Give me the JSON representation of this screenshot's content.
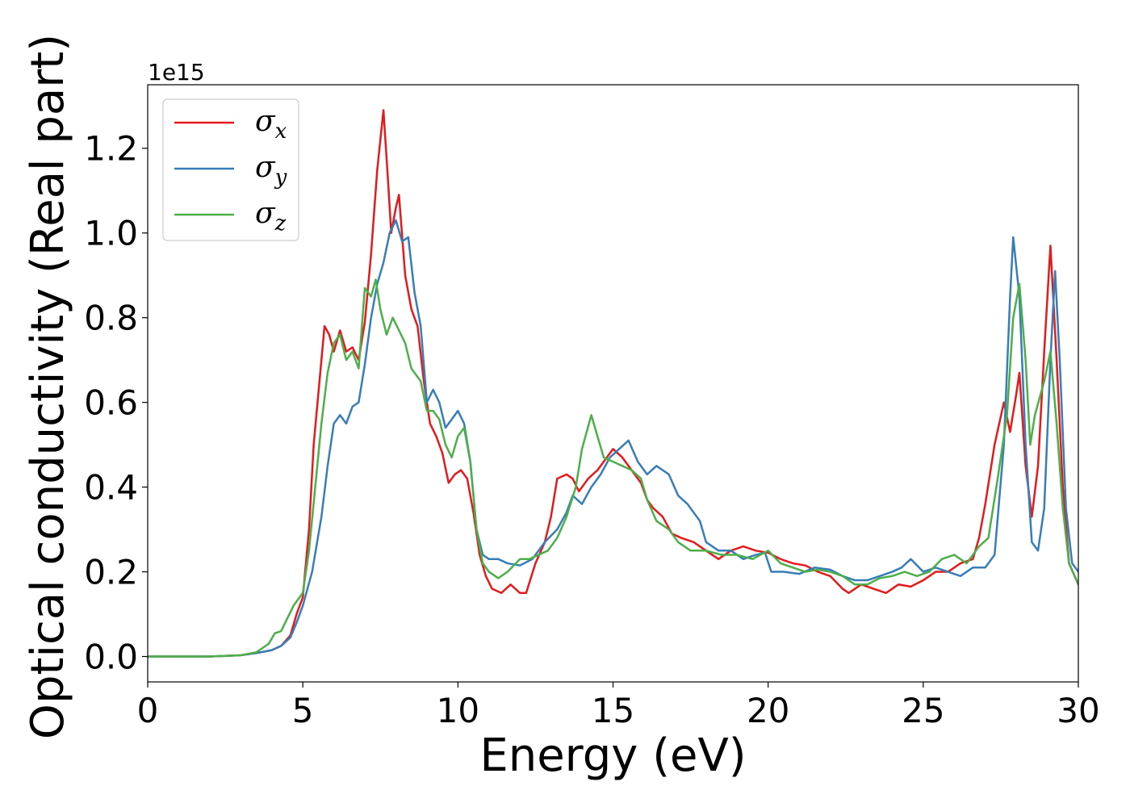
{
  "chart_data": {
    "type": "line",
    "xlabel": "Energy (eV)",
    "ylabel": "Optical conductivity (Real part)",
    "y_offset_label": "1e15",
    "xlim": [
      0,
      30
    ],
    "ylim": [
      -0.06,
      1.35
    ],
    "x_ticks": [
      0,
      5,
      10,
      15,
      20,
      25,
      30
    ],
    "x_tick_labels": [
      "0",
      "5",
      "10",
      "15",
      "20",
      "25",
      "30"
    ],
    "y_ticks": [
      0.0,
      0.2,
      0.4,
      0.6,
      0.8,
      1.0,
      1.2
    ],
    "y_tick_labels": [
      "0.0",
      "0.2",
      "0.4",
      "0.6",
      "0.8",
      "1.0",
      "1.2"
    ],
    "grid": false,
    "legend_position": "top-left",
    "series": [
      {
        "name": "σx",
        "symbol": "σ",
        "subscript": "x",
        "color": "#e41a1c",
        "points": [
          [
            0,
            0.0
          ],
          [
            1,
            0.0
          ],
          [
            2,
            0.0
          ],
          [
            3,
            0.003
          ],
          [
            3.5,
            0.008
          ],
          [
            4,
            0.015
          ],
          [
            4.3,
            0.025
          ],
          [
            4.6,
            0.05
          ],
          [
            4.8,
            0.1
          ],
          [
            5,
            0.14
          ],
          [
            5.2,
            0.3
          ],
          [
            5.35,
            0.5
          ],
          [
            5.5,
            0.62
          ],
          [
            5.7,
            0.78
          ],
          [
            5.85,
            0.76
          ],
          [
            6,
            0.72
          ],
          [
            6.2,
            0.77
          ],
          [
            6.4,
            0.72
          ],
          [
            6.6,
            0.73
          ],
          [
            6.8,
            0.7
          ],
          [
            7,
            0.79
          ],
          [
            7.2,
            0.95
          ],
          [
            7.4,
            1.15
          ],
          [
            7.6,
            1.29
          ],
          [
            7.75,
            1.12
          ],
          [
            7.85,
            1.0
          ],
          [
            8,
            1.06
          ],
          [
            8.1,
            1.09
          ],
          [
            8.3,
            0.9
          ],
          [
            8.5,
            0.82
          ],
          [
            8.7,
            0.78
          ],
          [
            8.9,
            0.65
          ],
          [
            9.1,
            0.55
          ],
          [
            9.3,
            0.52
          ],
          [
            9.5,
            0.48
          ],
          [
            9.7,
            0.41
          ],
          [
            9.9,
            0.43
          ],
          [
            10.1,
            0.44
          ],
          [
            10.3,
            0.42
          ],
          [
            10.5,
            0.34
          ],
          [
            10.7,
            0.24
          ],
          [
            10.9,
            0.19
          ],
          [
            11.1,
            0.16
          ],
          [
            11.4,
            0.15
          ],
          [
            11.7,
            0.17
          ],
          [
            12,
            0.15
          ],
          [
            12.2,
            0.15
          ],
          [
            12.5,
            0.22
          ],
          [
            12.8,
            0.27
          ],
          [
            13,
            0.33
          ],
          [
            13.2,
            0.42
          ],
          [
            13.5,
            0.43
          ],
          [
            13.7,
            0.42
          ],
          [
            13.9,
            0.39
          ],
          [
            14.2,
            0.42
          ],
          [
            14.5,
            0.44
          ],
          [
            14.8,
            0.47
          ],
          [
            15,
            0.49
          ],
          [
            15.3,
            0.47
          ],
          [
            15.6,
            0.44
          ],
          [
            15.9,
            0.41
          ],
          [
            16.1,
            0.37
          ],
          [
            16.3,
            0.35
          ],
          [
            16.6,
            0.33
          ],
          [
            16.9,
            0.29
          ],
          [
            17.2,
            0.28
          ],
          [
            17.6,
            0.27
          ],
          [
            18,
            0.25
          ],
          [
            18.4,
            0.23
          ],
          [
            18.8,
            0.25
          ],
          [
            19.2,
            0.26
          ],
          [
            19.6,
            0.25
          ],
          [
            20,
            0.245
          ],
          [
            20.4,
            0.23
          ],
          [
            20.8,
            0.22
          ],
          [
            21.2,
            0.215
          ],
          [
            21.6,
            0.2
          ],
          [
            22,
            0.19
          ],
          [
            22.4,
            0.16
          ],
          [
            22.6,
            0.15
          ],
          [
            23,
            0.17
          ],
          [
            23.4,
            0.16
          ],
          [
            23.8,
            0.15
          ],
          [
            24.2,
            0.17
          ],
          [
            24.6,
            0.165
          ],
          [
            25,
            0.18
          ],
          [
            25.4,
            0.2
          ],
          [
            25.8,
            0.2
          ],
          [
            26.2,
            0.22
          ],
          [
            26.6,
            0.23
          ],
          [
            26.8,
            0.28
          ],
          [
            27,
            0.36
          ],
          [
            27.3,
            0.5
          ],
          [
            27.6,
            0.6
          ],
          [
            27.8,
            0.53
          ],
          [
            28,
            0.62
          ],
          [
            28.1,
            0.67
          ],
          [
            28.3,
            0.45
          ],
          [
            28.5,
            0.33
          ],
          [
            28.7,
            0.45
          ],
          [
            28.9,
            0.72
          ],
          [
            29.1,
            0.97
          ],
          [
            29.3,
            0.7
          ],
          [
            29.5,
            0.4
          ],
          [
            29.7,
            0.22
          ],
          [
            30,
            0.17
          ]
        ]
      },
      {
        "name": "σy",
        "symbol": "σ",
        "subscript": "y",
        "color": "#377eb8",
        "points": [
          [
            0,
            0.0
          ],
          [
            1,
            0.0
          ],
          [
            2,
            0.0
          ],
          [
            3,
            0.003
          ],
          [
            3.5,
            0.008
          ],
          [
            4,
            0.015
          ],
          [
            4.3,
            0.025
          ],
          [
            4.6,
            0.045
          ],
          [
            4.8,
            0.08
          ],
          [
            5,
            0.12
          ],
          [
            5.3,
            0.2
          ],
          [
            5.6,
            0.33
          ],
          [
            5.8,
            0.45
          ],
          [
            6,
            0.55
          ],
          [
            6.2,
            0.57
          ],
          [
            6.4,
            0.55
          ],
          [
            6.6,
            0.59
          ],
          [
            6.8,
            0.6
          ],
          [
            7,
            0.69
          ],
          [
            7.2,
            0.8
          ],
          [
            7.4,
            0.88
          ],
          [
            7.6,
            0.93
          ],
          [
            7.8,
            1.0
          ],
          [
            8,
            1.03
          ],
          [
            8.2,
            0.98
          ],
          [
            8.4,
            0.99
          ],
          [
            8.6,
            0.86
          ],
          [
            8.8,
            0.78
          ],
          [
            9,
            0.6
          ],
          [
            9.2,
            0.63
          ],
          [
            9.4,
            0.6
          ],
          [
            9.6,
            0.54
          ],
          [
            9.8,
            0.56
          ],
          [
            10,
            0.58
          ],
          [
            10.2,
            0.55
          ],
          [
            10.4,
            0.46
          ],
          [
            10.6,
            0.3
          ],
          [
            10.8,
            0.24
          ],
          [
            11,
            0.23
          ],
          [
            11.3,
            0.23
          ],
          [
            11.6,
            0.22
          ],
          [
            12,
            0.215
          ],
          [
            12.4,
            0.23
          ],
          [
            12.8,
            0.27
          ],
          [
            13.2,
            0.3
          ],
          [
            13.5,
            0.34
          ],
          [
            13.7,
            0.38
          ],
          [
            14,
            0.36
          ],
          [
            14.3,
            0.4
          ],
          [
            14.6,
            0.43
          ],
          [
            14.9,
            0.47
          ],
          [
            15.2,
            0.49
          ],
          [
            15.5,
            0.51
          ],
          [
            15.8,
            0.46
          ],
          [
            16.1,
            0.43
          ],
          [
            16.4,
            0.45
          ],
          [
            16.8,
            0.43
          ],
          [
            17.1,
            0.38
          ],
          [
            17.4,
            0.36
          ],
          [
            17.8,
            0.32
          ],
          [
            18,
            0.27
          ],
          [
            18.4,
            0.25
          ],
          [
            18.8,
            0.25
          ],
          [
            19.2,
            0.23
          ],
          [
            19.6,
            0.24
          ],
          [
            19.9,
            0.245
          ],
          [
            20.1,
            0.2
          ],
          [
            20.5,
            0.2
          ],
          [
            21,
            0.195
          ],
          [
            21.5,
            0.21
          ],
          [
            22,
            0.205
          ],
          [
            22.4,
            0.19
          ],
          [
            22.8,
            0.18
          ],
          [
            23.2,
            0.18
          ],
          [
            23.6,
            0.19
          ],
          [
            24,
            0.2
          ],
          [
            24.3,
            0.21
          ],
          [
            24.6,
            0.23
          ],
          [
            25,
            0.2
          ],
          [
            25.4,
            0.21
          ],
          [
            25.8,
            0.2
          ],
          [
            26.2,
            0.19
          ],
          [
            26.6,
            0.21
          ],
          [
            27,
            0.21
          ],
          [
            27.3,
            0.24
          ],
          [
            27.6,
            0.5
          ],
          [
            27.8,
            0.85
          ],
          [
            27.9,
            0.99
          ],
          [
            28.1,
            0.85
          ],
          [
            28.3,
            0.5
          ],
          [
            28.5,
            0.27
          ],
          [
            28.7,
            0.25
          ],
          [
            28.9,
            0.35
          ],
          [
            29.1,
            0.7
          ],
          [
            29.25,
            0.91
          ],
          [
            29.4,
            0.7
          ],
          [
            29.6,
            0.35
          ],
          [
            29.8,
            0.22
          ],
          [
            30,
            0.2
          ]
        ]
      },
      {
        "name": "σz",
        "symbol": "σ",
        "subscript": "z",
        "color": "#4daf4a",
        "points": [
          [
            0,
            0.0
          ],
          [
            1,
            0.0
          ],
          [
            2,
            0.0
          ],
          [
            3,
            0.003
          ],
          [
            3.5,
            0.01
          ],
          [
            3.9,
            0.03
          ],
          [
            4.1,
            0.055
          ],
          [
            4.3,
            0.06
          ],
          [
            4.5,
            0.09
          ],
          [
            4.7,
            0.12
          ],
          [
            5,
            0.15
          ],
          [
            5.2,
            0.25
          ],
          [
            5.4,
            0.4
          ],
          [
            5.6,
            0.55
          ],
          [
            5.8,
            0.67
          ],
          [
            6,
            0.74
          ],
          [
            6.2,
            0.76
          ],
          [
            6.4,
            0.7
          ],
          [
            6.6,
            0.72
          ],
          [
            6.8,
            0.68
          ],
          [
            7,
            0.87
          ],
          [
            7.2,
            0.85
          ],
          [
            7.35,
            0.89
          ],
          [
            7.5,
            0.82
          ],
          [
            7.7,
            0.76
          ],
          [
            7.9,
            0.8
          ],
          [
            8.1,
            0.77
          ],
          [
            8.3,
            0.74
          ],
          [
            8.5,
            0.68
          ],
          [
            8.8,
            0.65
          ],
          [
            9,
            0.58
          ],
          [
            9.2,
            0.58
          ],
          [
            9.4,
            0.56
          ],
          [
            9.6,
            0.5
          ],
          [
            9.8,
            0.47
          ],
          [
            10,
            0.52
          ],
          [
            10.2,
            0.54
          ],
          [
            10.4,
            0.46
          ],
          [
            10.6,
            0.3
          ],
          [
            10.8,
            0.22
          ],
          [
            11,
            0.2
          ],
          [
            11.3,
            0.185
          ],
          [
            11.6,
            0.2
          ],
          [
            12,
            0.23
          ],
          [
            12.3,
            0.23
          ],
          [
            12.6,
            0.24
          ],
          [
            12.9,
            0.25
          ],
          [
            13.2,
            0.28
          ],
          [
            13.5,
            0.33
          ],
          [
            13.8,
            0.4
          ],
          [
            14,
            0.49
          ],
          [
            14.3,
            0.57
          ],
          [
            14.5,
            0.52
          ],
          [
            14.7,
            0.47
          ],
          [
            15,
            0.46
          ],
          [
            15.3,
            0.45
          ],
          [
            15.6,
            0.44
          ],
          [
            15.9,
            0.42
          ],
          [
            16.1,
            0.37
          ],
          [
            16.4,
            0.32
          ],
          [
            16.8,
            0.3
          ],
          [
            17.1,
            0.27
          ],
          [
            17.5,
            0.25
          ],
          [
            18,
            0.25
          ],
          [
            18.5,
            0.24
          ],
          [
            19,
            0.24
          ],
          [
            19.5,
            0.23
          ],
          [
            20,
            0.25
          ],
          [
            20.4,
            0.22
          ],
          [
            20.8,
            0.21
          ],
          [
            21.2,
            0.2
          ],
          [
            21.6,
            0.205
          ],
          [
            22,
            0.2
          ],
          [
            22.4,
            0.19
          ],
          [
            22.8,
            0.17
          ],
          [
            23.2,
            0.17
          ],
          [
            23.6,
            0.185
          ],
          [
            24,
            0.19
          ],
          [
            24.4,
            0.2
          ],
          [
            24.8,
            0.19
          ],
          [
            25.2,
            0.2
          ],
          [
            25.6,
            0.23
          ],
          [
            26,
            0.24
          ],
          [
            26.4,
            0.22
          ],
          [
            26.8,
            0.26
          ],
          [
            27.1,
            0.28
          ],
          [
            27.4,
            0.42
          ],
          [
            27.7,
            0.57
          ],
          [
            27.9,
            0.8
          ],
          [
            28.1,
            0.88
          ],
          [
            28.3,
            0.7
          ],
          [
            28.45,
            0.5
          ],
          [
            28.6,
            0.57
          ],
          [
            28.9,
            0.65
          ],
          [
            29.1,
            0.72
          ],
          [
            29.3,
            0.55
          ],
          [
            29.5,
            0.35
          ],
          [
            29.7,
            0.22
          ],
          [
            30,
            0.17
          ]
        ]
      }
    ]
  }
}
